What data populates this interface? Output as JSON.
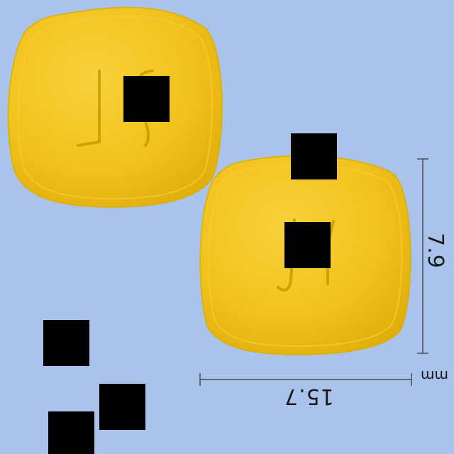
{
  "image": {
    "background_color": "#a9c3ea",
    "pill_color": "#f2c21d"
  },
  "dimensions": {
    "width_value": "15.7",
    "height_value": "7.9",
    "unit": "mm"
  }
}
